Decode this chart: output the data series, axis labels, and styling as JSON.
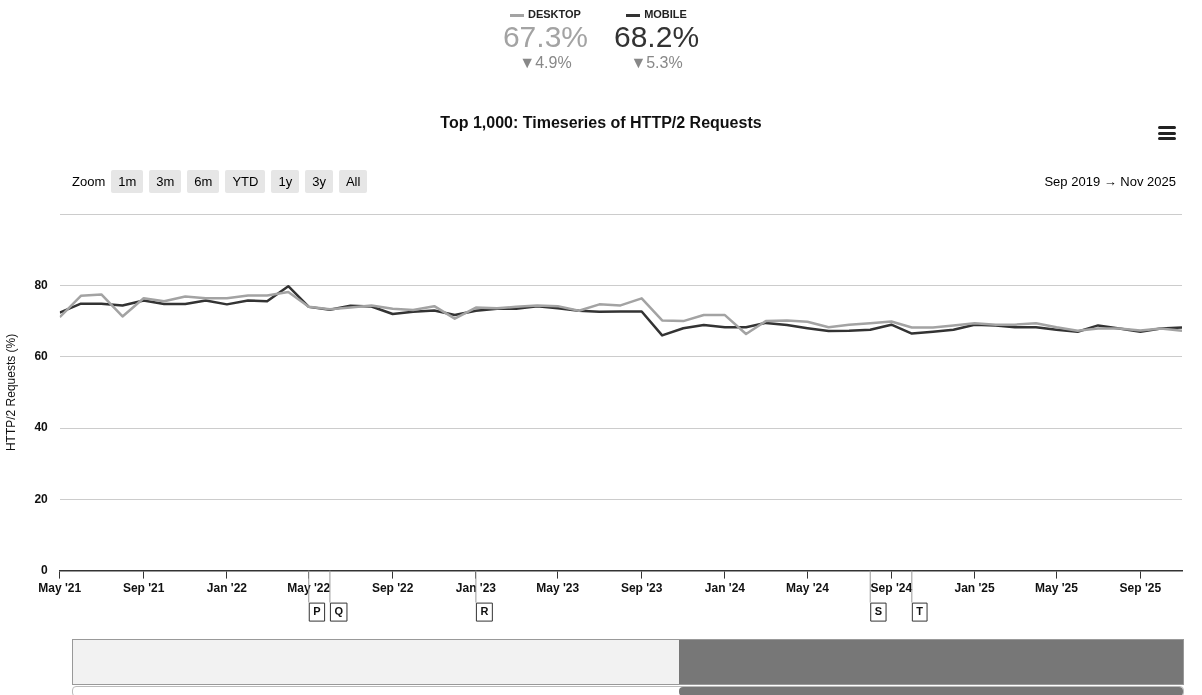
{
  "chart_data": {
    "type": "line",
    "title": "Top 1,000: Timeseries of HTTP/2 Requests",
    "ylabel": "HTTP/2 Requests (%)",
    "x": [
      "2021-05",
      "2021-06",
      "2021-07",
      "2021-08",
      "2021-09",
      "2021-10",
      "2021-11",
      "2021-12",
      "2022-01",
      "2022-02",
      "2022-03",
      "2022-04",
      "2022-05",
      "2022-06",
      "2022-07",
      "2022-08",
      "2022-09",
      "2022-10",
      "2022-11",
      "2022-12",
      "2023-01",
      "2023-02",
      "2023-03",
      "2023-04",
      "2023-05",
      "2023-06",
      "2023-07",
      "2023-08",
      "2023-09",
      "2023-10",
      "2023-11",
      "2023-12",
      "2024-01",
      "2024-02",
      "2024-03",
      "2024-04",
      "2024-05",
      "2024-06",
      "2024-07",
      "2024-08",
      "2024-09",
      "2024-10",
      "2024-11",
      "2024-12",
      "2025-01",
      "2025-02",
      "2025-03",
      "2025-04",
      "2025-05",
      "2025-06",
      "2025-07",
      "2025-08",
      "2025-09",
      "2025-10",
      "2025-11"
    ],
    "series": [
      {
        "name": "DESKTOP",
        "color": "#a3a3a3",
        "values": [
          71.1,
          77.1,
          77.5,
          71.3,
          76.4,
          75.6,
          76.9,
          76.4,
          76.4,
          77.2,
          77.2,
          78.2,
          74.0,
          73.3,
          73.8,
          74.4,
          73.5,
          73.1,
          74.2,
          70.7,
          73.8,
          73.6,
          74.0,
          74.4,
          74.2,
          72.9,
          74.7,
          74.4,
          76.4,
          70.2,
          70.0,
          71.7,
          71.7,
          66.4,
          70.0,
          70.2,
          69.8,
          68.3,
          69.0,
          69.4,
          69.9,
          68.2,
          68.2,
          68.8,
          69.4,
          69.0,
          69.0,
          69.4,
          68.3,
          67.3,
          67.9,
          67.9,
          67.4,
          67.9,
          67.3
        ]
      },
      {
        "name": "MOBILE",
        "color": "#333333",
        "values": [
          72.4,
          74.9,
          74.9,
          74.4,
          75.8,
          74.8,
          74.8,
          75.8,
          74.7,
          75.8,
          75.6,
          79.8,
          74.0,
          73.2,
          74.3,
          74.1,
          72.0,
          72.6,
          73.0,
          71.7,
          72.9,
          73.5,
          73.5,
          74.2,
          73.6,
          72.9,
          72.6,
          72.7,
          72.7,
          66.0,
          68.0,
          68.9,
          68.3,
          68.3,
          69.5,
          68.9,
          68.0,
          67.2,
          67.3,
          67.6,
          69.0,
          66.5,
          67.0,
          67.6,
          69.0,
          68.8,
          68.3,
          68.3,
          67.6,
          67.0,
          68.8,
          67.9,
          67.0,
          67.9,
          68.2
        ]
      }
    ],
    "xlim": [
      "2021-05",
      "2025-11"
    ],
    "xticks": [
      {
        "value": "2021-05",
        "label": "May '21"
      },
      {
        "value": "2021-09",
        "label": "Sep '21"
      },
      {
        "value": "2022-01",
        "label": "Jan '22"
      },
      {
        "value": "2022-05",
        "label": "May '22"
      },
      {
        "value": "2022-09",
        "label": "Sep '22"
      },
      {
        "value": "2023-01",
        "label": "Jan '23"
      },
      {
        "value": "2023-05",
        "label": "May '23"
      },
      {
        "value": "2023-09",
        "label": "Sep '23"
      },
      {
        "value": "2024-01",
        "label": "Jan '24"
      },
      {
        "value": "2024-05",
        "label": "May '24"
      },
      {
        "value": "2024-09",
        "label": "Sep '24"
      },
      {
        "value": "2025-01",
        "label": "Jan '25"
      },
      {
        "value": "2025-05",
        "label": "May '25"
      },
      {
        "value": "2025-09",
        "label": "Sep '25"
      }
    ],
    "ylim": [
      0,
      100
    ],
    "yticks": [
      0,
      20,
      40,
      60,
      80,
      {
        "value": 100,
        "label": null
      }
    ],
    "grid": "y",
    "legend": "top",
    "marker": "none",
    "line_style": "solid",
    "annotations": [
      "67.3%",
      "▼4.9%",
      "68.2%",
      "▼5.3%",
      "Zoom",
      "1m",
      "3m",
      "6m",
      "YTD",
      "1y",
      "3y",
      "All",
      "Sep 2019 → Nov 2025"
    ],
    "ref_lines": [
      {
        "axis": "x",
        "value": "2022-05",
        "label": "P"
      },
      {
        "axis": "x",
        "value": "2022-06",
        "label": "Q"
      },
      {
        "axis": "x",
        "value": "2023-01",
        "label": "R"
      },
      {
        "axis": "x",
        "value": "2024-08",
        "label": "S"
      },
      {
        "axis": "x",
        "value": "2024-10",
        "label": "T"
      }
    ]
  }
}
